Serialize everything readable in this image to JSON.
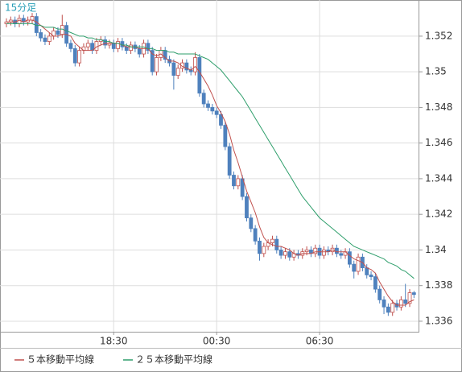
{
  "chart_data": {
    "type": "candlestick",
    "label": "15分足",
    "open": [
      1.3527,
      1.3528,
      1.3529,
      1.3527,
      1.353,
      1.3528,
      1.3529,
      1.3531,
      1.3522,
      1.3519,
      1.3517,
      1.352,
      1.3523,
      1.3521,
      1.3526,
      1.3516,
      1.3513,
      1.3505,
      1.3512,
      1.3514,
      1.3516,
      1.3512,
      1.3517,
      1.3518,
      1.3515,
      1.3516,
      1.3513,
      1.3517,
      1.3514,
      1.3512,
      1.3515,
      1.3513,
      1.351,
      1.3516,
      1.3512,
      1.35,
      1.3508,
      1.3512,
      1.3507,
      1.3505,
      1.3498,
      1.3502,
      1.3505,
      1.3501,
      1.35,
      1.3508,
      1.3488,
      1.3482,
      1.348,
      1.3478,
      1.3476,
      1.347,
      1.3458,
      1.3442,
      1.3436,
      1.344,
      1.343,
      1.3418,
      1.3412,
      1.3405,
      1.3398,
      1.3402,
      1.3404,
      1.3406,
      1.34,
      1.3397,
      1.3399,
      1.3396,
      1.3398,
      1.3397,
      1.3399,
      1.34,
      1.3398,
      1.3401,
      1.3397,
      1.34,
      1.3399,
      1.3401,
      1.3398,
      1.3397,
      1.3399,
      1.3392,
      1.3388,
      1.3396,
      1.339,
      1.3386,
      1.3385,
      1.3378,
      1.3372,
      1.3368,
      1.3365,
      1.337,
      1.3368,
      1.3372,
      1.337,
      1.3376
    ],
    "high": [
      1.353,
      1.3531,
      1.3531,
      1.3532,
      1.3532,
      1.3531,
      1.3533,
      1.3533,
      1.3524,
      1.3521,
      1.3522,
      1.3525,
      1.3525,
      1.3532,
      1.3528,
      1.3518,
      1.3515,
      1.3514,
      1.3516,
      1.3518,
      1.3518,
      1.3519,
      1.352,
      1.352,
      1.3518,
      1.3518,
      1.3519,
      1.3519,
      1.3516,
      1.3517,
      1.3517,
      1.3515,
      1.3518,
      1.3518,
      1.3514,
      1.351,
      1.3514,
      1.3514,
      1.3509,
      1.3507,
      1.3504,
      1.3507,
      1.3507,
      1.3503,
      1.3511,
      1.351,
      1.349,
      1.3484,
      1.3482,
      1.348,
      1.3478,
      1.3472,
      1.346,
      1.3444,
      1.3442,
      1.3442,
      1.3432,
      1.342,
      1.3414,
      1.3407,
      1.3404,
      1.3406,
      1.3408,
      1.3408,
      1.3402,
      1.3401,
      1.3401,
      1.34,
      1.34,
      1.3401,
      1.3402,
      1.3402,
      1.3403,
      1.3403,
      1.3402,
      1.3402,
      1.3403,
      1.3403,
      1.34,
      1.3401,
      1.3401,
      1.3394,
      1.3398,
      1.3398,
      1.3392,
      1.3388,
      1.3387,
      1.338,
      1.3374,
      1.337,
      1.3372,
      1.3372,
      1.3374,
      1.3381,
      1.3378,
      1.3377
    ],
    "low": [
      1.3525,
      1.3526,
      1.3525,
      1.3525,
      1.3526,
      1.3526,
      1.3527,
      1.352,
      1.3517,
      1.3515,
      1.3515,
      1.3518,
      1.3519,
      1.3519,
      1.3514,
      1.3511,
      1.3503,
      1.3503,
      1.351,
      1.3512,
      1.351,
      1.351,
      1.3515,
      1.3513,
      1.3513,
      1.3511,
      1.3511,
      1.3512,
      1.351,
      1.351,
      1.3511,
      1.3508,
      1.3508,
      1.351,
      1.3498,
      1.3498,
      1.3506,
      1.3505,
      1.3503,
      1.349,
      1.3496,
      1.35,
      1.3499,
      1.3498,
      1.3498,
      1.3486,
      1.348,
      1.3478,
      1.3476,
      1.3474,
      1.3468,
      1.3456,
      1.344,
      1.3434,
      1.3434,
      1.3428,
      1.3416,
      1.341,
      1.3403,
      1.3394,
      1.3396,
      1.34,
      1.3402,
      1.3398,
      1.3395,
      1.3395,
      1.3394,
      1.3394,
      1.3395,
      1.3395,
      1.3397,
      1.3396,
      1.3396,
      1.3395,
      1.3395,
      1.3397,
      1.3397,
      1.3396,
      1.3395,
      1.3395,
      1.339,
      1.3384,
      1.3386,
      1.3388,
      1.3384,
      1.3383,
      1.3376,
      1.337,
      1.3364,
      1.3363,
      1.3363,
      1.3366,
      1.3366,
      1.3368,
      1.3368,
      1.3373
    ],
    "close": [
      1.3528,
      1.3529,
      1.3527,
      1.353,
      1.3528,
      1.3529,
      1.3531,
      1.3522,
      1.3519,
      1.3517,
      1.352,
      1.3523,
      1.3521,
      1.3526,
      1.3516,
      1.3513,
      1.3505,
      1.3512,
      1.3514,
      1.3516,
      1.3512,
      1.3517,
      1.3518,
      1.3515,
      1.3516,
      1.3513,
      1.3517,
      1.3514,
      1.3512,
      1.3515,
      1.3513,
      1.351,
      1.3516,
      1.3512,
      1.35,
      1.3508,
      1.3512,
      1.3507,
      1.3505,
      1.3498,
      1.3502,
      1.3505,
      1.3501,
      1.35,
      1.3508,
      1.3488,
      1.3482,
      1.348,
      1.3478,
      1.3476,
      1.347,
      1.3458,
      1.3442,
      1.3436,
      1.344,
      1.343,
      1.3418,
      1.3412,
      1.3405,
      1.3398,
      1.3402,
      1.3404,
      1.3406,
      1.34,
      1.3397,
      1.3399,
      1.3396,
      1.3398,
      1.3397,
      1.3399,
      1.34,
      1.3398,
      1.3401,
      1.3397,
      1.34,
      1.3399,
      1.3401,
      1.3398,
      1.3397,
      1.3399,
      1.3392,
      1.3388,
      1.3396,
      1.339,
      1.3386,
      1.3385,
      1.3378,
      1.3372,
      1.3368,
      1.3365,
      1.337,
      1.3368,
      1.3372,
      1.337,
      1.3376,
      1.3375
    ],
    "up_color": "#ffffff",
    "up_stroke": "#c0504d",
    "down_color": "#4f81bd",
    "series": [
      {
        "name": "５本移動平均線",
        "color": "#c0504d",
        "values": [
          1.3528,
          1.3528,
          1.3528,
          1.3529,
          1.3528,
          1.3529,
          1.3529,
          1.3528,
          1.3526,
          1.3524,
          1.3522,
          1.352,
          1.352,
          1.3521,
          1.3521,
          1.352,
          1.3516,
          1.3514,
          1.3512,
          1.3512,
          1.3512,
          1.3514,
          1.3515,
          1.3516,
          1.3516,
          1.3516,
          1.3516,
          1.3515,
          1.3514,
          1.3514,
          1.3514,
          1.3513,
          1.3513,
          1.3513,
          1.351,
          1.3509,
          1.351,
          1.3508,
          1.3506,
          1.3506,
          1.3505,
          1.3503,
          1.3502,
          1.3501,
          1.3503,
          1.35,
          1.3496,
          1.3492,
          1.3487,
          1.3481,
          1.3477,
          1.3472,
          1.3465,
          1.3456,
          1.3449,
          1.3441,
          1.3433,
          1.3427,
          1.3421,
          1.3413,
          1.3407,
          1.3404,
          1.3403,
          1.3402,
          1.3402,
          1.3401,
          1.34,
          1.3398,
          1.3397,
          1.3398,
          1.3398,
          1.3398,
          1.3399,
          1.3399,
          1.3399,
          1.3399,
          1.34,
          1.3399,
          1.3399,
          1.3399,
          1.3397,
          1.3395,
          1.3394,
          1.3393,
          1.339,
          1.3389,
          1.3387,
          1.3382,
          1.3378,
          1.3374,
          1.3371,
          1.3369,
          1.3369,
          1.3369,
          1.3371,
          1.3372
        ]
      },
      {
        "name": "２５本移動平均線",
        "color": "#2e9e6b",
        "values": [
          1.3527,
          1.3527,
          1.3527,
          1.3527,
          1.3527,
          1.3527,
          1.3527,
          1.3526,
          1.3526,
          1.3525,
          1.3525,
          1.3525,
          1.3524,
          1.3524,
          1.3523,
          1.3522,
          1.3521,
          1.352,
          1.352,
          1.3519,
          1.3519,
          1.3518,
          1.3518,
          1.3517,
          1.3517,
          1.3516,
          1.3516,
          1.3515,
          1.3515,
          1.3514,
          1.3514,
          1.3514,
          1.3514,
          1.3513,
          1.3513,
          1.3512,
          1.3512,
          1.3512,
          1.3511,
          1.3511,
          1.351,
          1.351,
          1.351,
          1.351,
          1.351,
          1.3509,
          1.3508,
          1.3507,
          1.3505,
          1.3503,
          1.3501,
          1.3498,
          1.3495,
          1.3492,
          1.3489,
          1.3486,
          1.3482,
          1.3478,
          1.3474,
          1.347,
          1.3466,
          1.3462,
          1.3458,
          1.3454,
          1.345,
          1.3446,
          1.3442,
          1.3438,
          1.3434,
          1.343,
          1.3427,
          1.3424,
          1.3421,
          1.3418,
          1.3416,
          1.3414,
          1.3412,
          1.341,
          1.3408,
          1.3406,
          1.3404,
          1.3402,
          1.3401,
          1.34,
          1.3399,
          1.3398,
          1.3397,
          1.3396,
          1.3395,
          1.3393,
          1.3392,
          1.3391,
          1.3389,
          1.3388,
          1.3386,
          1.3384
        ]
      }
    ],
    "ylim": [
      1.33541,
      1.35403
    ],
    "yticks": [
      1.336,
      1.338,
      1.34,
      1.342,
      1.344,
      1.346,
      1.348,
      1.35,
      1.352
    ],
    "xticks": [
      {
        "value": 25,
        "label": "18:30"
      },
      {
        "value": 49,
        "label": "00:30"
      },
      {
        "value": 73,
        "label": "06:30"
      }
    ],
    "grid": true
  }
}
